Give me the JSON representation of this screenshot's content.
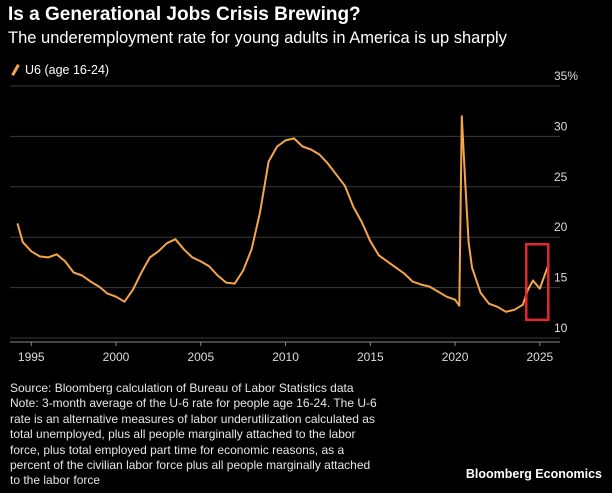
{
  "header": {
    "title": "Is a Generational Jobs Crisis Brewing?",
    "subtitle": "The underemployment rate for young adults in America is up sharply"
  },
  "legend": {
    "label": "U6 (age 16-24)"
  },
  "footer": {
    "lines": [
      "Source: Bloomberg calculation of Bureau of Labor Statistics data",
      "Note: 3-month average of the U-6 rate for people age 16-24. The U-6",
      "rate is an alternative measures of labor underutilization calculated as",
      "total unemployed, plus all people marginally attached to the labor",
      "force, plus total employed part time for economic reasons, as a",
      "percent of the civilian labor force plus all people marginally attached",
      "to the labor force"
    ],
    "brand": "Bloomberg Economics"
  },
  "colors": {
    "background": "#000000",
    "line": "#f5a54a",
    "highlight_box": "#e0282e",
    "grid": "#3a3a3a"
  },
  "chart_data": {
    "type": "line",
    "title": "Is a Generational Jobs Crisis Brewing?",
    "subtitle": "The underemployment rate for young adults in America is up sharply",
    "xlabel": "",
    "ylabel": "",
    "xlim": [
      1994.1,
      2025.6
    ],
    "ylim": [
      10,
      35
    ],
    "x_ticks": [
      1995,
      2000,
      2005,
      2010,
      2015,
      2020,
      2025
    ],
    "x_tick_labels": [
      "1995",
      "2000",
      "2005",
      "2010",
      "2015",
      "2020",
      "2025"
    ],
    "y_ticks": [
      10,
      15,
      20,
      25,
      30,
      35
    ],
    "y_tick_labels": [
      "10",
      "15",
      "20",
      "25",
      "30",
      "35%"
    ],
    "y_axis_side": "right",
    "grid": "horizontal",
    "legend_position": "top-left",
    "series": [
      {
        "name": "U6 (age 16-24)",
        "x": [
          1994.2,
          1994.5,
          1995.0,
          1995.5,
          1996.0,
          1996.5,
          1997.0,
          1997.5,
          1998.0,
          1998.5,
          1999.0,
          1999.5,
          2000.0,
          2000.5,
          2001.0,
          2001.5,
          2002.0,
          2002.5,
          2003.0,
          2003.5,
          2004.0,
          2004.5,
          2005.0,
          2005.5,
          2006.0,
          2006.5,
          2007.0,
          2007.5,
          2008.0,
          2008.5,
          2009.0,
          2009.5,
          2010.0,
          2010.5,
          2011.0,
          2011.5,
          2012.0,
          2012.5,
          2013.0,
          2013.5,
          2014.0,
          2014.5,
          2015.0,
          2015.5,
          2016.0,
          2016.5,
          2017.0,
          2017.5,
          2018.0,
          2018.5,
          2019.0,
          2019.5,
          2020.0,
          2020.25,
          2020.4,
          2020.6,
          2020.8,
          2021.0,
          2021.5,
          2022.0,
          2022.5,
          2023.0,
          2023.5,
          2024.0,
          2024.3,
          2024.6,
          2025.0,
          2025.3,
          2025.5
        ],
        "y": [
          21.3,
          19.5,
          18.6,
          18.1,
          18.0,
          18.3,
          17.6,
          16.5,
          16.2,
          15.6,
          15.1,
          14.4,
          14.1,
          13.6,
          14.8,
          16.5,
          18.0,
          18.6,
          19.4,
          19.8,
          18.8,
          18.0,
          17.6,
          17.1,
          16.2,
          15.5,
          15.4,
          16.7,
          18.8,
          22.5,
          27.5,
          29.0,
          29.6,
          29.8,
          29.0,
          28.7,
          28.2,
          27.3,
          26.2,
          25.1,
          23.0,
          21.5,
          19.6,
          18.2,
          17.6,
          17.0,
          16.4,
          15.6,
          15.3,
          15.1,
          14.6,
          14.1,
          13.8,
          13.2,
          32.0,
          25.5,
          19.5,
          17.0,
          14.5,
          13.4,
          13.1,
          12.6,
          12.8,
          13.3,
          14.8,
          15.7,
          14.9,
          16.3,
          17.2
        ]
      }
    ],
    "annotations": [
      {
        "type": "highlight-box",
        "color": "#e0282e",
        "x_range": [
          2024.2,
          2025.5
        ],
        "y_range": [
          11.8,
          19.3
        ]
      }
    ]
  }
}
